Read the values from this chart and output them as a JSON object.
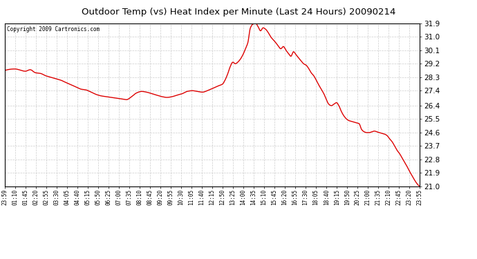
{
  "title": "Outdoor Temp (vs) Heat Index per Minute (Last 24 Hours) 20090214",
  "copyright": "Copyright 2009 Cartronics.com",
  "line_color": "#dd0000",
  "background_color": "#ffffff",
  "grid_color": "#cccccc",
  "ylim": [
    21.0,
    31.9
  ],
  "yticks": [
    21.0,
    21.9,
    22.8,
    23.7,
    24.6,
    25.5,
    26.4,
    27.4,
    28.3,
    29.2,
    30.1,
    31.0,
    31.9
  ],
  "xtick_labels": [
    "23:59",
    "01:10",
    "01:45",
    "02:20",
    "02:55",
    "03:30",
    "04:05",
    "04:40",
    "05:15",
    "05:50",
    "06:25",
    "07:00",
    "07:35",
    "08:10",
    "08:45",
    "09:20",
    "09:55",
    "10:30",
    "11:05",
    "11:40",
    "12:15",
    "12:50",
    "13:25",
    "14:00",
    "14:35",
    "15:10",
    "15:45",
    "16:20",
    "16:55",
    "17:30",
    "18:05",
    "18:40",
    "19:15",
    "19:50",
    "20:25",
    "21:00",
    "21:35",
    "22:10",
    "22:45",
    "23:20",
    "23:55"
  ],
  "key_x": [
    0,
    35,
    71,
    88,
    106,
    124,
    141,
    159,
    176,
    194,
    211,
    229,
    246,
    264,
    281,
    299,
    316,
    334,
    351,
    369,
    386,
    404,
    421,
    439,
    456,
    474,
    491,
    509,
    526,
    544,
    561,
    579,
    596,
    614,
    631,
    649,
    666,
    684,
    701,
    719,
    736,
    754,
    762,
    771,
    780,
    789,
    798,
    806,
    815,
    824,
    833,
    841,
    850,
    859,
    868,
    876,
    885,
    894,
    903,
    911,
    920,
    929,
    938,
    946,
    955,
    964,
    973,
    981,
    990,
    999,
    1008,
    1016,
    1025,
    1034,
    1043,
    1051,
    1060,
    1069,
    1078,
    1086,
    1095,
    1104,
    1113,
    1121,
    1130,
    1139,
    1148,
    1156,
    1165,
    1174,
    1183,
    1191,
    1200,
    1209,
    1218,
    1226,
    1235,
    1244,
    1253,
    1261,
    1270,
    1279,
    1288,
    1296,
    1305,
    1314,
    1323,
    1331,
    1340,
    1349,
    1358,
    1366,
    1375,
    1384,
    1393,
    1401,
    1410,
    1419,
    1428,
    1436
  ],
  "key_y": [
    28.75,
    28.85,
    28.7,
    28.8,
    28.6,
    28.55,
    28.4,
    28.3,
    28.2,
    28.1,
    27.95,
    27.8,
    27.65,
    27.5,
    27.45,
    27.3,
    27.15,
    27.05,
    27.0,
    26.95,
    26.9,
    26.85,
    26.8,
    27.0,
    27.25,
    27.35,
    27.3,
    27.2,
    27.1,
    27.0,
    26.95,
    27.0,
    27.1,
    27.2,
    27.35,
    27.4,
    27.35,
    27.3,
    27.4,
    27.55,
    27.7,
    27.85,
    28.1,
    28.5,
    29.0,
    29.3,
    29.2,
    29.3,
    29.5,
    29.8,
    30.2,
    30.6,
    31.6,
    31.85,
    31.9,
    31.7,
    31.4,
    31.6,
    31.5,
    31.3,
    31.0,
    30.8,
    30.6,
    30.4,
    30.2,
    30.35,
    30.1,
    29.9,
    29.7,
    30.0,
    29.8,
    29.6,
    29.4,
    29.2,
    29.1,
    28.9,
    28.6,
    28.4,
    28.1,
    27.8,
    27.5,
    27.2,
    26.8,
    26.5,
    26.4,
    26.5,
    26.6,
    26.4,
    26.0,
    25.7,
    25.5,
    25.4,
    25.35,
    25.3,
    25.25,
    25.2,
    24.8,
    24.65,
    24.6,
    24.6,
    24.65,
    24.7,
    24.65,
    24.6,
    24.55,
    24.5,
    24.4,
    24.2,
    24.0,
    23.7,
    23.4,
    23.2,
    22.9,
    22.6,
    22.3,
    22.0,
    21.7,
    21.4,
    21.15,
    21.0
  ]
}
